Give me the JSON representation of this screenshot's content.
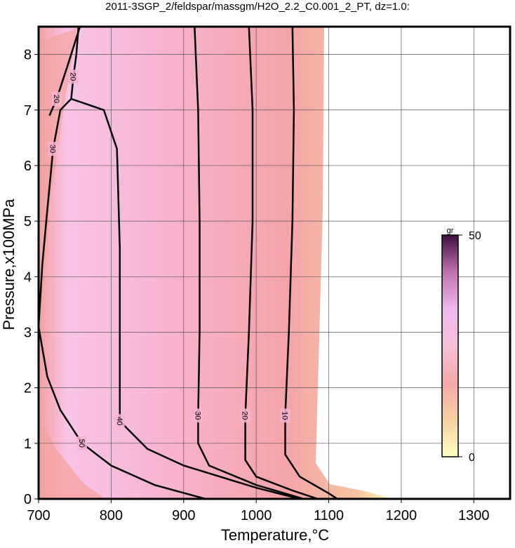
{
  "chart_data": {
    "type": "contour",
    "title": "2011-3SGP_2/feldspar/massgm/H2O_2.2_C0.001_2_PT, dz=1.0:",
    "x_label": "Temperature,°C",
    "y_label": "Pressure,x100MPa",
    "xlim": [
      700,
      1350
    ],
    "ylim": [
      0,
      8.5
    ],
    "xticks": [
      700,
      800,
      900,
      1000,
      1100,
      1200,
      1300
    ],
    "yticks": [
      0,
      1,
      2,
      3,
      4,
      5,
      6,
      7,
      8
    ],
    "grid": true,
    "series": [
      {
        "level": 10,
        "x": [
          1050,
          1052,
          1050,
          1045,
          1040,
          1040,
          1060,
          1100,
          1112
        ],
        "y": [
          8.5,
          7,
          5,
          3,
          1.5,
          0.8,
          0.4,
          0.1,
          0
        ]
      },
      {
        "level": 20,
        "x": [
          990,
          995,
          995,
          990,
          985,
          985,
          1000,
          1050,
          1085
        ],
        "y": [
          8.5,
          7,
          5,
          3,
          1.5,
          0.7,
          0.4,
          0.15,
          0
        ]
      },
      {
        "level": 30,
        "x": [
          915,
          920,
          922,
          922,
          920,
          920,
          935,
          1000,
          1065
        ],
        "y": [
          8.5,
          7,
          5,
          3,
          1.5,
          1,
          0.6,
          0.25,
          0
        ]
      },
      {
        "level": 40,
        "x": [
          745,
          790,
          808,
          812,
          812,
          812,
          850,
          900,
          1000,
          1060
        ],
        "y": [
          7.2,
          7,
          6.3,
          4.5,
          2,
          1.4,
          0.9,
          0.6,
          0.2,
          0
        ]
      },
      {
        "level": 50,
        "x": [
          700,
          712,
          730,
          760,
          800,
          860,
          930
        ],
        "y": [
          3.1,
          2.2,
          1.6,
          1,
          0.6,
          0.25,
          0
        ]
      },
      {
        "level": 30,
        "x": [
          700,
          705,
          712,
          720,
          730,
          745
        ],
        "y": [
          3.1,
          4.2,
          5.2,
          6.3,
          7,
          7.2
        ]
      },
      {
        "level": 20,
        "x": [
          757,
          740,
          725,
          715
        ],
        "y": [
          8.5,
          7.8,
          7.2,
          6.9
        ]
      },
      {
        "level": 20,
        "x": [
          755,
          752,
          748,
          745
        ],
        "y": [
          8.5,
          8,
          7.6,
          7.2
        ]
      }
    ],
    "colorbar": {
      "label": "gr",
      "lim": [
        0,
        50
      ],
      "ticks": [
        0,
        50
      ],
      "colors": [
        "#ffffc0",
        "#f8d0a0",
        "#f4a8a8",
        "#f8c0d8",
        "#f0b8f0",
        "#c070b0",
        "#401040"
      ]
    }
  }
}
